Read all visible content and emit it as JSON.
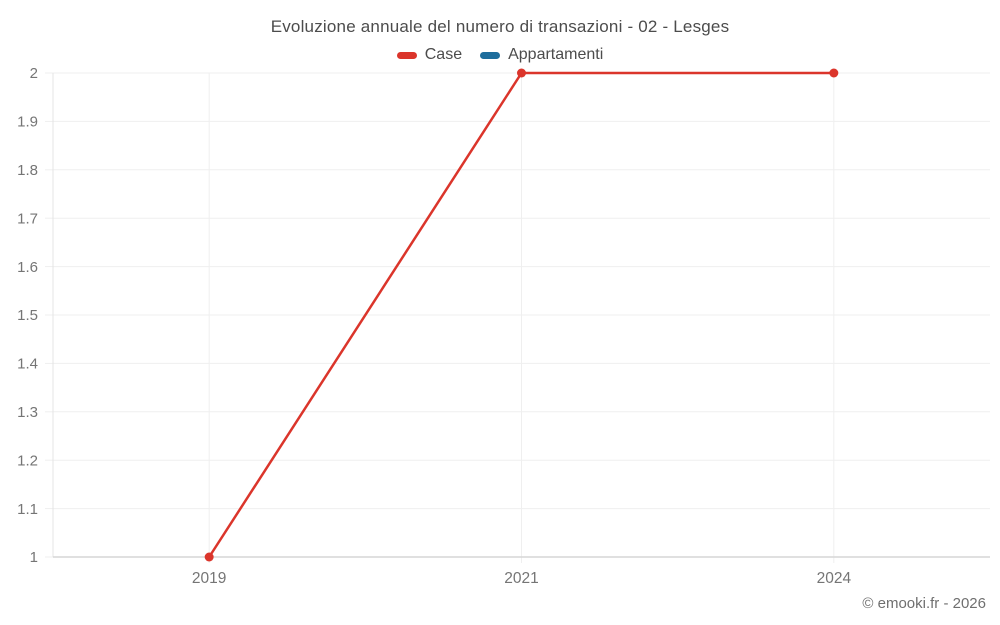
{
  "title": "Evoluzione annuale del numero di transazioni - 02 - Lesges",
  "legend": {
    "items": [
      {
        "label": "Case",
        "color": "#db352b"
      },
      {
        "label": "Appartamenti",
        "color": "#1d6d9c"
      }
    ]
  },
  "footer": {
    "credit": "© emooki.fr - 2026"
  },
  "colors": {
    "grid": "#efefef",
    "axis_line": "#d6d6d6",
    "left_axis_line": "#e4e4e4",
    "tick_label": "#757575",
    "title_text": "#4c4c4c"
  },
  "chart_data": {
    "type": "line",
    "title": "Evoluzione annuale del numero di transazioni - 02 - Lesges",
    "categories": [
      "2019",
      "2021",
      "2024"
    ],
    "series": [
      {
        "name": "Case",
        "color": "#db352b",
        "values": [
          1,
          2,
          2
        ]
      },
      {
        "name": "Appartamenti",
        "color": "#1d6d9c",
        "values": []
      }
    ],
    "xlabel": "",
    "ylabel": "",
    "ylim": [
      1,
      2
    ],
    "ytick_step": 0.1,
    "ytick_labels": [
      "1",
      "1.1",
      "1.2",
      "1.3",
      "1.4",
      "1.5",
      "1.6",
      "1.7",
      "1.8",
      "1.9",
      "2"
    ],
    "grid": "horizontal and vertical gridlines, light gray",
    "legend_position": "top",
    "marker": "circle"
  }
}
